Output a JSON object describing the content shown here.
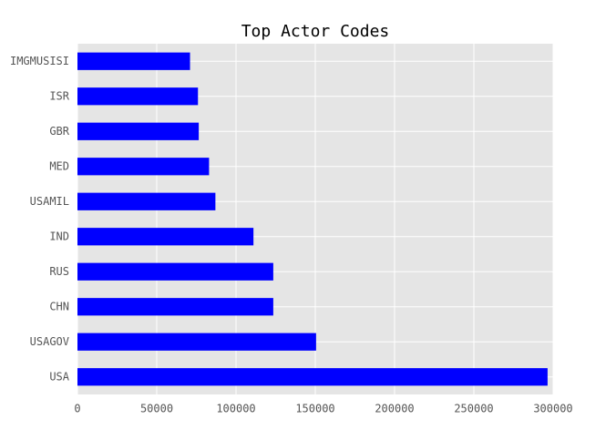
{
  "chart_data": {
    "type": "barh",
    "title": "Top Actor Codes",
    "categories": [
      "USA",
      "USAGOV",
      "CHN",
      "RUS",
      "IND",
      "USAMIL",
      "MED",
      "GBR",
      "ISR",
      "IMGMUSISI"
    ],
    "values": [
      296500,
      150500,
      123500,
      123500,
      111000,
      87000,
      83000,
      76500,
      76000,
      71000
    ],
    "color": "#0000ff",
    "xlim": [
      0,
      300000
    ],
    "xticks": [
      0,
      50000,
      100000,
      150000,
      200000,
      250000,
      300000
    ],
    "grid": true
  }
}
